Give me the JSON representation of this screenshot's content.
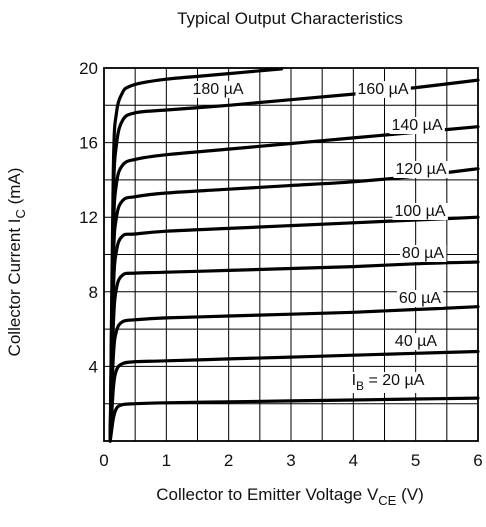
{
  "chart_data": {
    "type": "line",
    "title": "Typical Output Characteristics",
    "xlabel": {
      "main": "Collector to Emitter Voltage V",
      "sub": "CE",
      "unit": " (V)"
    },
    "ylabel": {
      "main": "Collector Current I",
      "sub": "C",
      "unit": " (mA)"
    },
    "xlim": [
      0,
      6
    ],
    "ylim": [
      0,
      20
    ],
    "grid": true,
    "x_ticks": [
      "0",
      "1",
      "2",
      "3",
      "4",
      "5",
      "6"
    ],
    "y_ticks": [
      "4",
      "8",
      "12",
      "16",
      "20"
    ],
    "series": [
      {
        "label": "I",
        "label_sub": "B",
        "label_rest": " = 20 µA",
        "x": [
          0.1,
          0.15,
          0.2,
          0.3,
          0.5,
          1,
          2,
          3,
          4,
          5,
          6
        ],
        "values": [
          0,
          1.2,
          1.75,
          1.95,
          2.0,
          2.05,
          2.1,
          2.15,
          2.2,
          2.25,
          2.3
        ]
      },
      {
        "label": "40 µA",
        "x": [
          0.1,
          0.15,
          0.2,
          0.3,
          0.5,
          1,
          2,
          3,
          4,
          5,
          6
        ],
        "values": [
          0,
          2.8,
          3.8,
          4.15,
          4.25,
          4.3,
          4.4,
          4.5,
          4.6,
          4.7,
          4.8
        ]
      },
      {
        "label": "60 µA",
        "x": [
          0.1,
          0.15,
          0.2,
          0.3,
          0.5,
          1,
          2,
          3,
          4,
          5,
          6
        ],
        "values": [
          0,
          4.5,
          5.9,
          6.4,
          6.5,
          6.6,
          6.7,
          6.8,
          6.9,
          7.05,
          7.2
        ]
      },
      {
        "label": "80 µA",
        "x": [
          0.1,
          0.15,
          0.2,
          0.3,
          0.5,
          1,
          2,
          3,
          4,
          5,
          6
        ],
        "values": [
          0,
          6.2,
          8.2,
          8.9,
          9.0,
          9.05,
          9.15,
          9.25,
          9.35,
          9.5,
          9.6
        ]
      },
      {
        "label": "100 µA",
        "x": [
          0.1,
          0.15,
          0.2,
          0.3,
          0.5,
          1,
          2,
          3,
          4,
          5,
          6
        ],
        "values": [
          0,
          8.0,
          10.2,
          11.0,
          11.1,
          11.25,
          11.4,
          11.55,
          11.7,
          11.85,
          12.0
        ]
      },
      {
        "label": "120 µA",
        "x": [
          0.1,
          0.15,
          0.2,
          0.3,
          0.5,
          1,
          2,
          3,
          4,
          5,
          6
        ],
        "values": [
          0,
          9.6,
          12.0,
          12.9,
          13.1,
          13.3,
          13.5,
          13.7,
          13.9,
          14.2,
          14.6
        ]
      },
      {
        "label": "140 µA",
        "x": [
          0.1,
          0.15,
          0.2,
          0.3,
          0.5,
          1,
          2,
          3,
          4,
          5,
          6
        ],
        "values": [
          0,
          11.0,
          13.8,
          14.8,
          15.1,
          15.35,
          15.65,
          15.95,
          16.25,
          16.55,
          16.85
        ]
      },
      {
        "label": "160 µA",
        "x": [
          0.1,
          0.15,
          0.2,
          0.3,
          0.5,
          1,
          2,
          3,
          4,
          5,
          6
        ],
        "values": [
          0,
          12.8,
          15.9,
          17.2,
          17.6,
          17.75,
          18.0,
          18.3,
          18.6,
          18.95,
          19.35
        ]
      },
      {
        "label": "180 µA",
        "x": [
          0.1,
          0.15,
          0.2,
          0.3,
          0.4,
          0.6,
          1,
          1.5,
          2,
          2.5,
          2.85
        ],
        "values": [
          0,
          14.5,
          17.6,
          18.7,
          19.0,
          19.2,
          19.4,
          19.55,
          19.7,
          19.85,
          19.95
        ]
      }
    ]
  }
}
